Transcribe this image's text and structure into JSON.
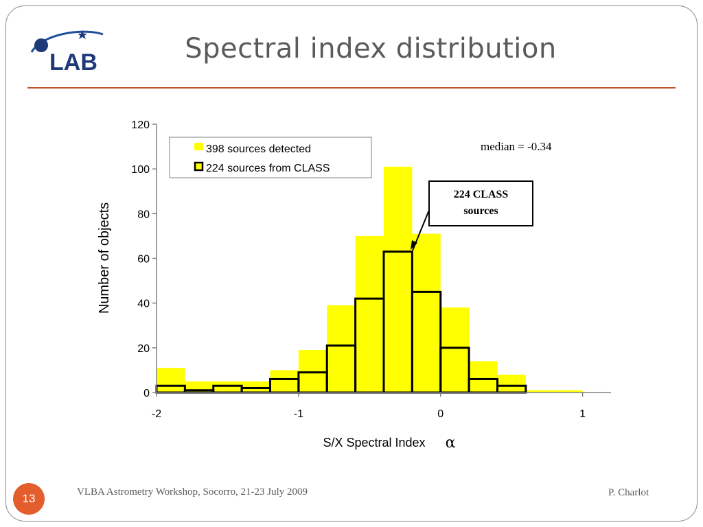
{
  "slide": {
    "title": "Spectral index distribution",
    "page_number": "13",
    "footer_left": "VLBA Astrometry Workshop, Socorro, 21-23 July 2009",
    "footer_right": "P. Charlot",
    "logo_text": "LAB",
    "colors": {
      "title": "#5a5a5a",
      "rule": "#c0522b",
      "page_badge": "#e45d2c"
    }
  },
  "chart_data": {
    "type": "bar",
    "xlabel": "S/X Spectral Index",
    "xlabel_symbol": "α",
    "ylabel": "Number of objects",
    "xlim": [
      -2,
      1.2
    ],
    "ylim": [
      0,
      120
    ],
    "x_ticks": [
      -2,
      -1,
      0,
      1
    ],
    "y_ticks": [
      0,
      20,
      40,
      60,
      80,
      100,
      120
    ],
    "bin_edges": [
      -2.0,
      -1.8,
      -1.6,
      -1.4,
      -1.2,
      -1.0,
      -0.8,
      -0.6,
      -0.4,
      -0.2,
      0.0,
      0.2,
      0.4,
      0.6,
      0.8,
      1.0
    ],
    "series": [
      {
        "name": "398 sources detected",
        "style": "filled",
        "color": "#ffff00",
        "values": [
          11,
          5,
          5,
          5,
          10,
          19,
          39,
          70,
          101,
          71,
          38,
          14,
          8,
          1,
          1
        ]
      },
      {
        "name": "224 sources from CLASS",
        "style": "outline",
        "color": "#000000",
        "values": [
          3,
          1,
          3,
          2,
          6,
          9,
          21,
          42,
          63,
          45,
          20,
          6,
          3,
          0,
          0
        ]
      }
    ],
    "legend_position": "top-left",
    "annotations": {
      "median": "median = -0.34",
      "callout_line1": "224 CLASS",
      "callout_line2": "sources"
    }
  }
}
